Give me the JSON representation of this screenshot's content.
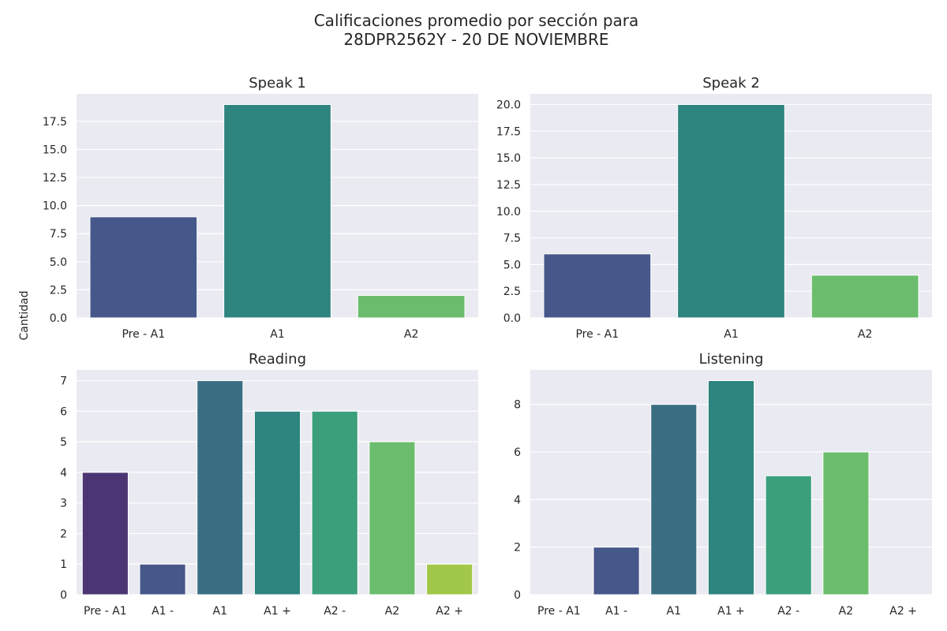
{
  "figure": {
    "title_line1": "Calificaciones promedio por sección para",
    "title_line2": "28DPR2562Y - 20 DE NOVIEMBRE",
    "ylabel": "Cantidad"
  },
  "chart_data": [
    {
      "type": "bar",
      "title": "Speak 1",
      "categories": [
        "Pre - A1",
        "A1",
        "A2"
      ],
      "values": [
        9,
        19,
        2
      ],
      "colors": [
        "#46578a",
        "#2e847f",
        "#6bbd6d"
      ],
      "ylim": [
        0,
        19.95
      ],
      "yticks": [
        0,
        2.5,
        5,
        7.5,
        10,
        12.5,
        15,
        17.5
      ],
      "tick_decimals": 1,
      "ylabel": "Cantidad",
      "grid": true
    },
    {
      "type": "bar",
      "title": "Speak 2",
      "categories": [
        "Pre - A1",
        "A1",
        "A2"
      ],
      "values": [
        6,
        20,
        4
      ],
      "colors": [
        "#46578a",
        "#2e847f",
        "#6bbd6d"
      ],
      "ylim": [
        0,
        21
      ],
      "yticks": [
        0,
        2.5,
        5,
        7.5,
        10,
        12.5,
        15,
        17.5,
        20
      ],
      "tick_decimals": 1,
      "grid": true
    },
    {
      "type": "bar",
      "title": "Reading",
      "categories": [
        "Pre - A1",
        "A1 -",
        "A1",
        "A1 +",
        "A2 -",
        "A2",
        "A2 +"
      ],
      "values": [
        4,
        1,
        7,
        6,
        6,
        5,
        1
      ],
      "colors": [
        "#4b3673",
        "#46578a",
        "#3a6e83",
        "#2e847f",
        "#3b9f7c",
        "#6bbd6d",
        "#a2c849"
      ],
      "ylim": [
        0,
        7.35
      ],
      "yticks": [
        0,
        1,
        2,
        3,
        4,
        5,
        6,
        7
      ],
      "tick_decimals": 0,
      "grid": true
    },
    {
      "type": "bar",
      "title": "Listening",
      "categories": [
        "Pre - A1",
        "A1 -",
        "A1",
        "A1 +",
        "A2 -",
        "A2",
        "A2 +"
      ],
      "values": [
        0,
        2,
        8,
        9,
        5,
        6,
        0
      ],
      "colors": [
        "#4b3673",
        "#46578a",
        "#3a6e83",
        "#2e847f",
        "#3b9f7c",
        "#6bbd6d",
        "#a2c849"
      ],
      "ylim": [
        0,
        9.45
      ],
      "yticks": [
        0,
        2,
        4,
        6,
        8
      ],
      "tick_decimals": 0,
      "grid": true
    }
  ],
  "style": {
    "axes_background": "#eaeaf2",
    "grid_color": "#ffffff",
    "text_color": "#262626"
  }
}
